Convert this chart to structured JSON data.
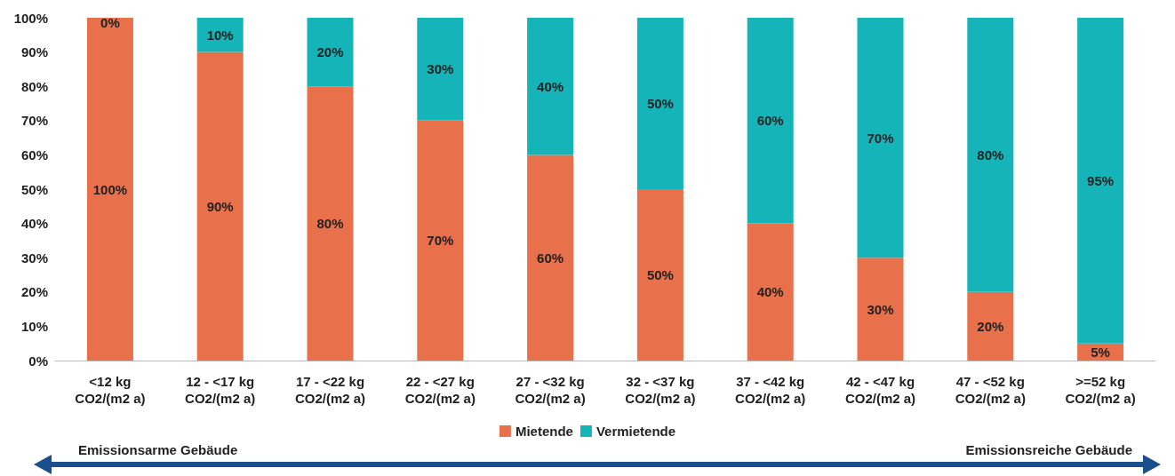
{
  "chart_data": {
    "type": "bar",
    "stacked": true,
    "categories": [
      "<12 kg\nCO2/(m2 a)",
      "12 - <17 kg\nCO2/(m2 a)",
      "17 - <22 kg\nCO2/(m2 a)",
      "22 - <27 kg\nCO2/(m2 a)",
      "27 - <32 kg\nCO2/(m2 a)",
      "32 - <37 kg\nCO2/(m2 a)",
      "37 - <42 kg\nCO2/(m2 a)",
      "42 - <47 kg\nCO2/(m2 a)",
      "47 - <52 kg\nCO2/(m2 a)",
      ">=52 kg\nCO2/(m2 a)"
    ],
    "series": [
      {
        "name": "Mietende",
        "color": "#e8704a",
        "values": [
          100,
          90,
          80,
          70,
          60,
          50,
          40,
          30,
          20,
          5
        ],
        "value_labels": [
          "100%",
          "90%",
          "80%",
          "70%",
          "60%",
          "50%",
          "40%",
          "30%",
          "20%",
          "5%"
        ]
      },
      {
        "name": "Vermietende",
        "color": "#14b4b8",
        "values": [
          0,
          10,
          20,
          30,
          40,
          50,
          60,
          70,
          80,
          95
        ],
        "value_labels": [
          "0%",
          "10%",
          "20%",
          "30%",
          "40%",
          "50%",
          "60%",
          "70%",
          "80%",
          "95%"
        ]
      }
    ],
    "ylim": [
      0,
      100
    ],
    "yticks": [
      {
        "value": 0,
        "label": "0%"
      },
      {
        "value": 10,
        "label": "10%"
      },
      {
        "value": 20,
        "label": "20%"
      },
      {
        "value": 30,
        "label": "30%"
      },
      {
        "value": 40,
        "label": "40%"
      },
      {
        "value": 50,
        "label": "50%"
      },
      {
        "value": 60,
        "label": "60%"
      },
      {
        "value": 70,
        "label": "70%"
      },
      {
        "value": 80,
        "label": "80%"
      },
      {
        "value": 90,
        "label": "90%"
      },
      {
        "value": 100,
        "label": "100%"
      }
    ],
    "grid": false,
    "legend": "bottom",
    "annotations": [
      "Emissionsarme Gebäude",
      "Emissionsreiche Gebäude"
    ]
  }
}
